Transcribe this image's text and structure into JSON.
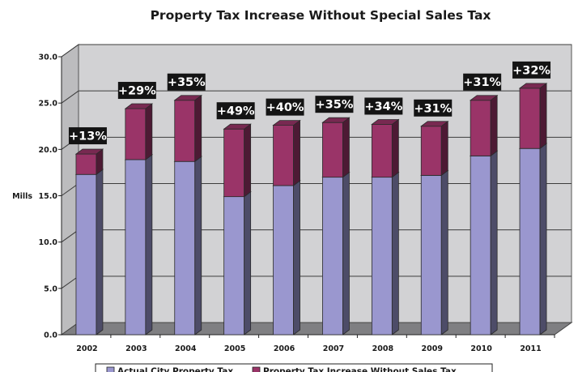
{
  "chart_data": {
    "type": "bar",
    "stacked": true,
    "three_d": true,
    "title": "Property Tax Increase Without Special Sales Tax",
    "ylabel": "Mills",
    "ylim": [
      0,
      30
    ],
    "yticks": [
      "0.0",
      "5.0",
      "10.0",
      "15.0",
      "20.0",
      "25.0",
      "30.0"
    ],
    "grid": true,
    "legend_position": "bottom",
    "categories": [
      "2002",
      "2003",
      "2004",
      "2005",
      "2006",
      "2007",
      "2008",
      "2009",
      "2010",
      "2011"
    ],
    "series": [
      {
        "name": "Actual City Property Tax",
        "color": "#9a97cf",
        "values": [
          17.3,
          18.9,
          18.7,
          14.9,
          16.1,
          17.0,
          17.0,
          17.2,
          19.3,
          20.1
        ]
      },
      {
        "name": "Property Tax Increase Without Sales Tax",
        "color": "#9a3468",
        "values": [
          2.2,
          5.5,
          6.6,
          7.3,
          6.5,
          5.9,
          5.7,
          5.3,
          6.0,
          6.5
        ]
      }
    ],
    "data_labels": [
      "+13%",
      "+29%",
      "+35%",
      "+49%",
      "+40%",
      "+35%",
      "+34%",
      "+31%",
      "+31%",
      "+32%"
    ]
  }
}
